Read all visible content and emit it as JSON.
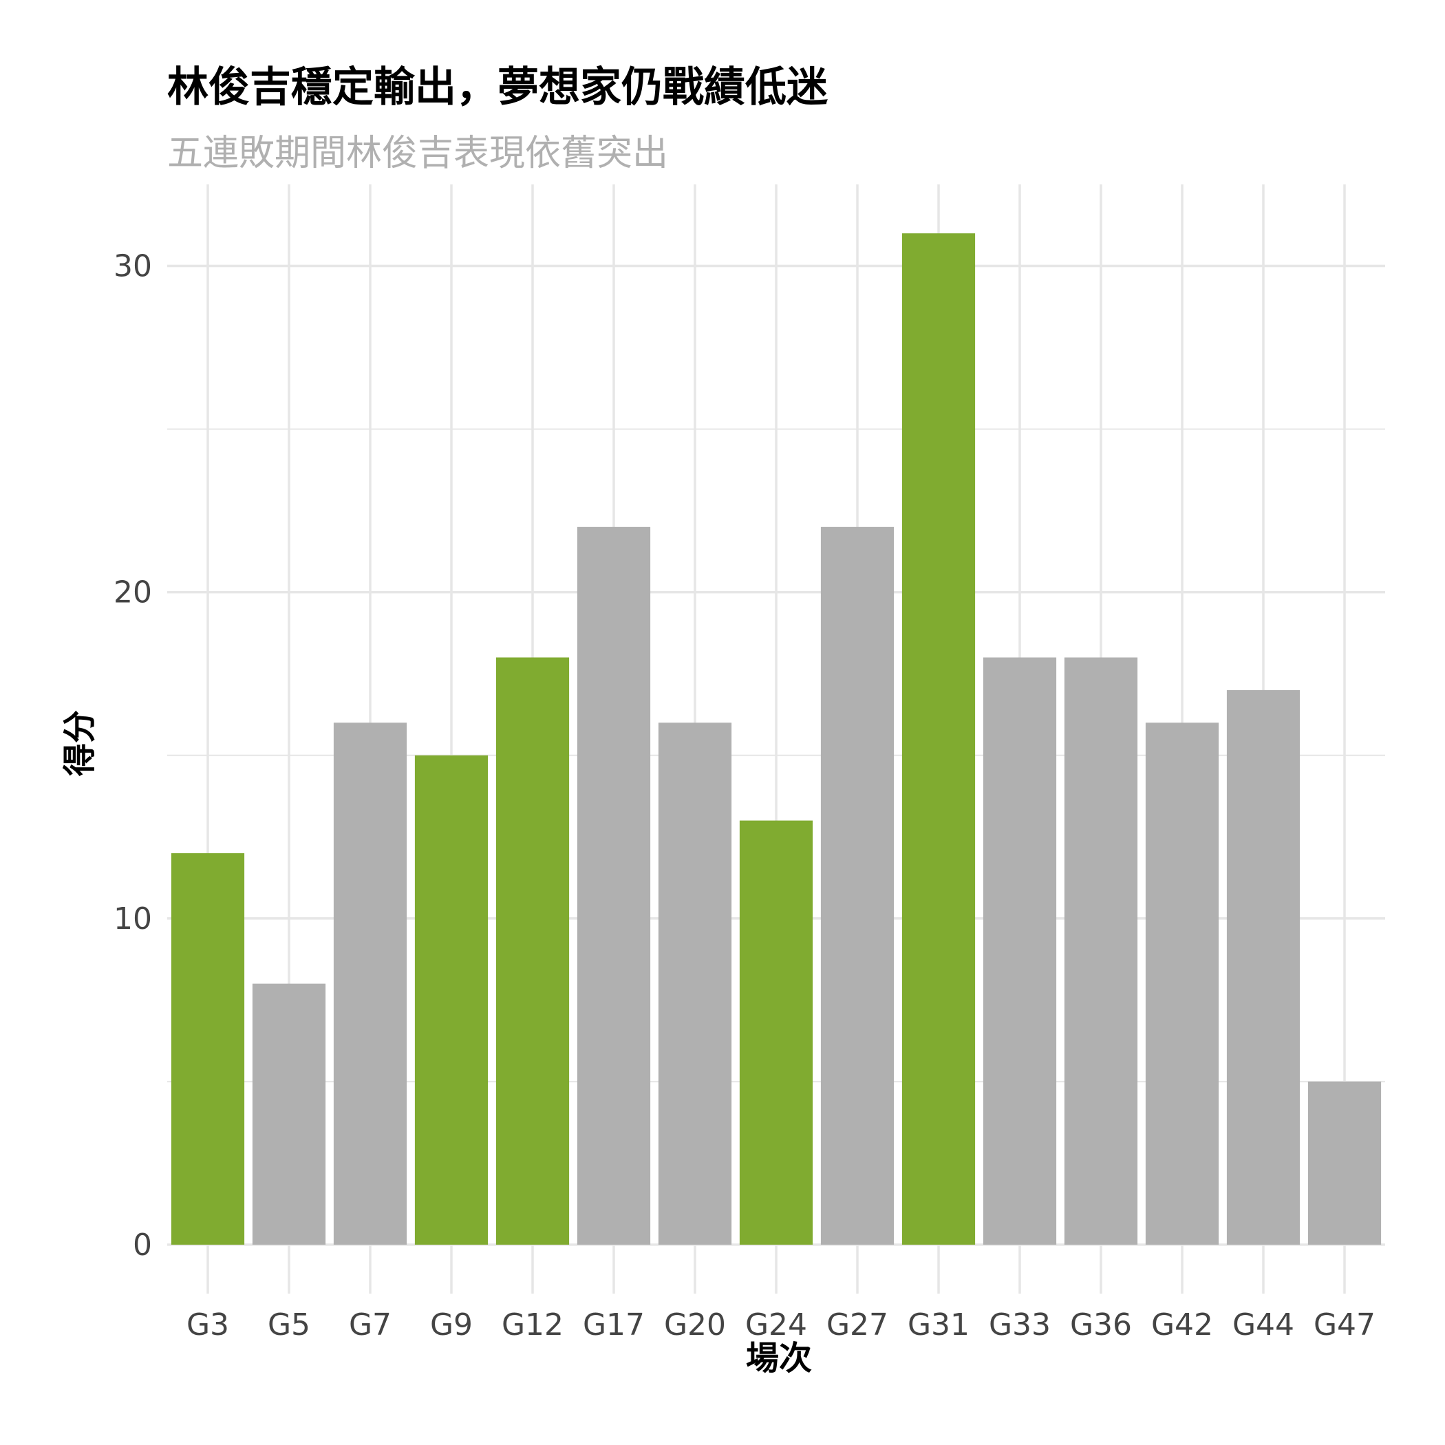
{
  "chart_data": {
    "type": "bar",
    "title": "林俊吉穩定輸出，夢想家仍戰績低迷",
    "subtitle": "五連敗期間林俊吉表現依舊突出",
    "xlabel": "場次",
    "ylabel": "得分",
    "categories": [
      "G3",
      "G5",
      "G7",
      "G9",
      "G12",
      "G17",
      "G20",
      "G24",
      "G27",
      "G31",
      "G33",
      "G36",
      "G42",
      "G44",
      "G47"
    ],
    "values": [
      12,
      8,
      16,
      15,
      18,
      22,
      16,
      13,
      22,
      31,
      18,
      18,
      16,
      17,
      5
    ],
    "highlight": [
      true,
      false,
      false,
      true,
      true,
      false,
      false,
      true,
      false,
      true,
      false,
      false,
      false,
      false,
      false
    ],
    "ylim": [
      -1.5,
      32.5
    ],
    "yticks": [
      0,
      10,
      20,
      30
    ],
    "grid": true,
    "colors": {
      "highlight": "#80ab30",
      "default": "#b0b0b0",
      "grid": "#e6e6e6"
    }
  }
}
